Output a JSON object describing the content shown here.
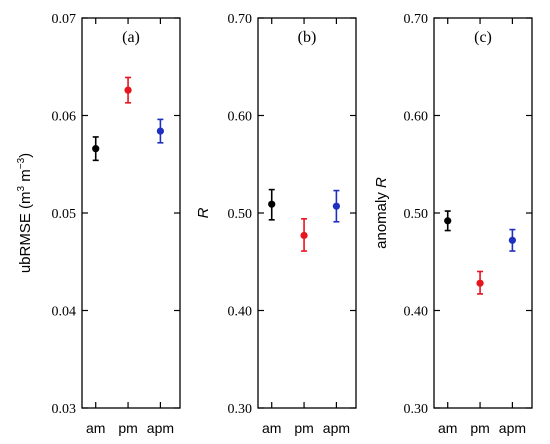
{
  "chart_data": [
    {
      "type": "scatter",
      "panel_label": "(a)",
      "ylabel_main": "ubRMSE (m",
      "ylabel_sup1": "3",
      "ylabel_mid": " m",
      "ylabel_sup2": "−3",
      "ylabel_end": ")",
      "ylabel_italic": false,
      "categories": [
        "am",
        "pm",
        "apm"
      ],
      "ylim": [
        0.03,
        0.07
      ],
      "yticks": [
        0.03,
        0.04,
        0.05,
        0.06,
        0.07
      ],
      "ytick_labels": [
        "0.03",
        "0.04",
        "0.05",
        "0.06",
        "0.07"
      ],
      "points": [
        {
          "category": "am",
          "value": 0.0566,
          "err_low": 0.0554,
          "err_high": 0.0578,
          "color": "#000000"
        },
        {
          "category": "pm",
          "value": 0.0626,
          "err_low": 0.0613,
          "err_high": 0.0639,
          "color": "#e8141e"
        },
        {
          "category": "apm",
          "value": 0.0584,
          "err_low": 0.0572,
          "err_high": 0.0596,
          "color": "#1f2fbf"
        }
      ]
    },
    {
      "type": "scatter",
      "panel_label": "(b)",
      "ylabel_main": "R",
      "ylabel_italic": true,
      "categories": [
        "am",
        "pm",
        "apm"
      ],
      "ylim": [
        0.3,
        0.7
      ],
      "yticks": [
        0.3,
        0.4,
        0.5,
        0.6,
        0.7
      ],
      "ytick_labels": [
        "0.30",
        "0.40",
        "0.50",
        "0.60",
        "0.70"
      ],
      "points": [
        {
          "category": "am",
          "value": 0.509,
          "err_low": 0.493,
          "err_high": 0.524,
          "color": "#000000"
        },
        {
          "category": "pm",
          "value": 0.477,
          "err_low": 0.461,
          "err_high": 0.494,
          "color": "#e8141e"
        },
        {
          "category": "apm",
          "value": 0.507,
          "err_low": 0.491,
          "err_high": 0.523,
          "color": "#1f2fbf"
        }
      ]
    },
    {
      "type": "scatter",
      "panel_label": "(c)",
      "ylabel_prefix": "anomaly ",
      "ylabel_main": "R",
      "ylabel_italic": true,
      "categories": [
        "am",
        "pm",
        "apm"
      ],
      "ylim": [
        0.3,
        0.7
      ],
      "yticks": [
        0.3,
        0.4,
        0.5,
        0.6,
        0.7
      ],
      "ytick_labels": [
        "0.30",
        "0.40",
        "0.50",
        "0.60",
        "0.70"
      ],
      "points": [
        {
          "category": "am",
          "value": 0.492,
          "err_low": 0.482,
          "err_high": 0.502,
          "color": "#000000"
        },
        {
          "category": "pm",
          "value": 0.428,
          "err_low": 0.417,
          "err_high": 0.44,
          "color": "#e8141e"
        },
        {
          "category": "apm",
          "value": 0.472,
          "err_low": 0.461,
          "err_high": 0.483,
          "color": "#1f2fbf"
        }
      ]
    }
  ]
}
